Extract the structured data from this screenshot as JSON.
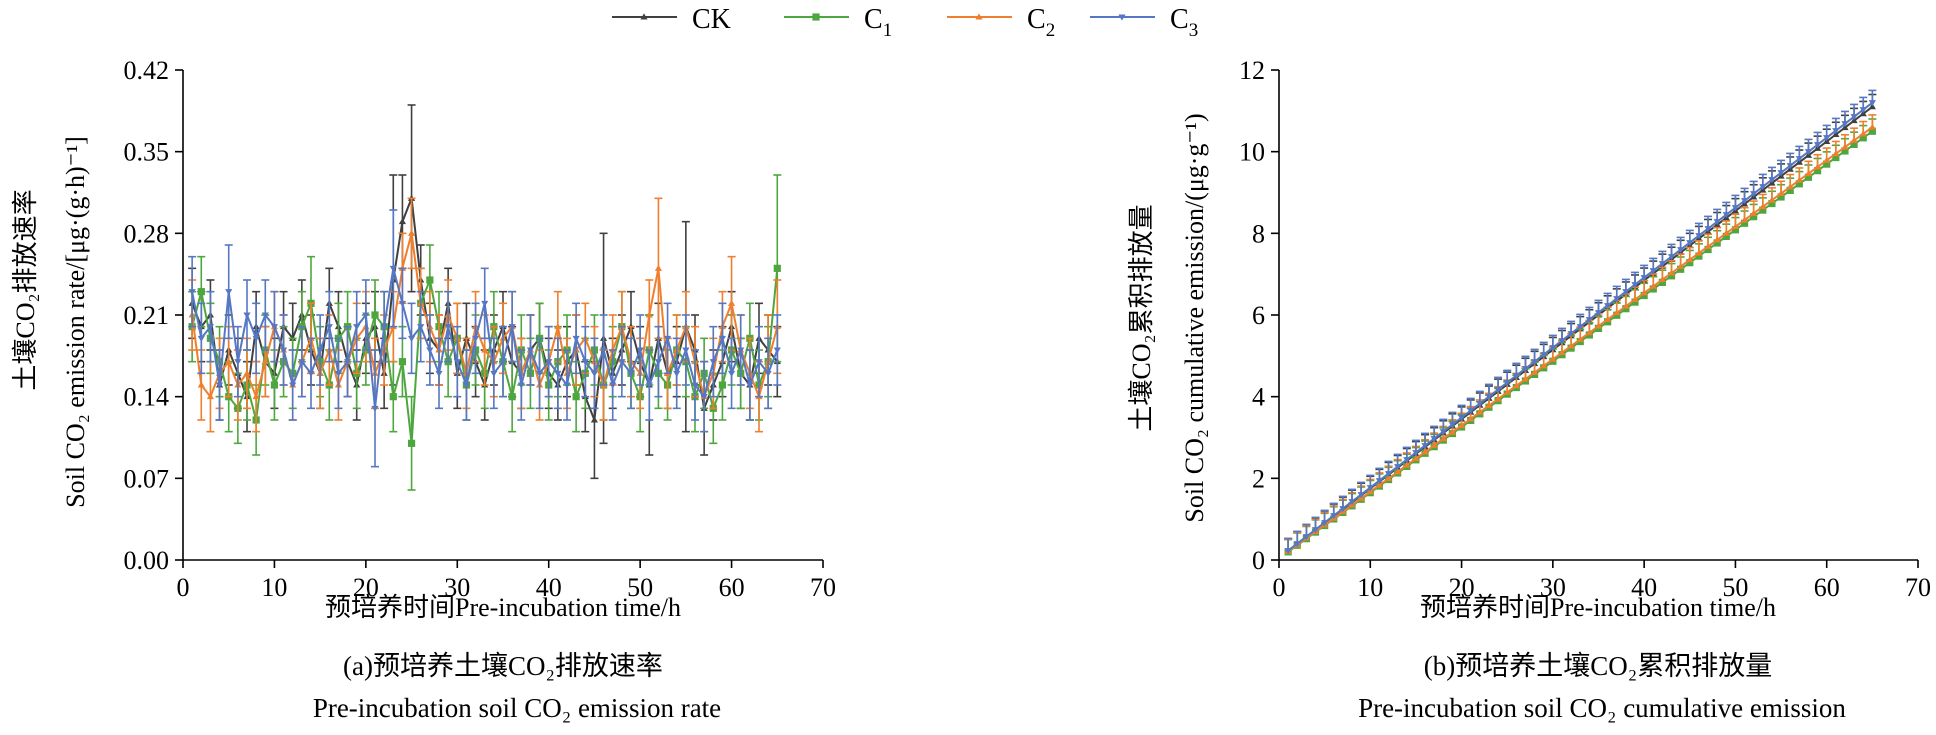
{
  "legend": {
    "items": [
      {
        "label": "CK",
        "sub": "",
        "color": "#404040",
        "marker": "triangle-up"
      },
      {
        "label": "C",
        "sub": "1",
        "color": "#4ea73e",
        "marker": "square"
      },
      {
        "label": "C",
        "sub": "2",
        "color": "#ef7f2e",
        "marker": "triangle-up"
      },
      {
        "label": "C",
        "sub": "3",
        "color": "#5577c4",
        "marker": "triangle-down"
      }
    ]
  },
  "chart_data": [
    {
      "type": "line",
      "id": "a",
      "xlabel": "预培养时间Pre-incubation time/h",
      "ylabel_cn": "土壤CO₂排放速率",
      "ylabel_en": "Soil CO₂ emission rate/[μg·(g·h)⁻¹]",
      "caption_cn": "(a)预培养土壤CO₂排放速率",
      "caption_en": "Pre-incubation soil CO₂ emission rate",
      "xlim": [
        0,
        70
      ],
      "ylim": [
        0,
        0.42
      ],
      "xticks": [
        "0",
        "10",
        "20",
        "30",
        "40",
        "50",
        "60",
        "70"
      ],
      "yticks": [
        "0.00",
        "0.07",
        "0.14",
        "0.21",
        "0.28",
        "0.35",
        "0.42"
      ],
      "x": [
        1,
        2,
        3,
        4,
        5,
        6,
        7,
        8,
        9,
        10,
        11,
        12,
        13,
        14,
        15,
        16,
        17,
        18,
        19,
        20,
        21,
        22,
        23,
        24,
        25,
        26,
        27,
        28,
        29,
        30,
        31,
        32,
        33,
        34,
        35,
        36,
        37,
        38,
        39,
        40,
        41,
        42,
        43,
        44,
        45,
        46,
        47,
        48,
        49,
        50,
        51,
        52,
        53,
        54,
        55,
        56,
        57,
        58,
        59,
        60,
        61,
        62,
        63,
        64,
        65
      ],
      "series": [
        {
          "name": "CK",
          "color": "#404040",
          "marker": "triangle-up",
          "values": [
            0.22,
            0.2,
            0.21,
            0.15,
            0.18,
            0.16,
            0.14,
            0.2,
            0.17,
            0.16,
            0.2,
            0.19,
            0.21,
            0.18,
            0.16,
            0.22,
            0.2,
            0.17,
            0.15,
            0.19,
            0.2,
            0.16,
            0.24,
            0.29,
            0.31,
            0.24,
            0.19,
            0.18,
            0.22,
            0.16,
            0.19,
            0.17,
            0.15,
            0.18,
            0.2,
            0.17,
            0.16,
            0.18,
            0.19,
            0.16,
            0.15,
            0.17,
            0.18,
            0.14,
            0.12,
            0.19,
            0.16,
            0.18,
            0.2,
            0.17,
            0.15,
            0.19,
            0.16,
            0.17,
            0.2,
            0.18,
            0.13,
            0.15,
            0.17,
            0.2,
            0.16,
            0.15,
            0.19,
            0.18,
            0.17
          ],
          "errors": [
            0.03,
            0.03,
            0.03,
            0.03,
            0.03,
            0.03,
            0.03,
            0.03,
            0.03,
            0.03,
            0.03,
            0.03,
            0.03,
            0.03,
            0.03,
            0.03,
            0.03,
            0.03,
            0.03,
            0.03,
            0.03,
            0.03,
            0.09,
            0.04,
            0.08,
            0.03,
            0.03,
            0.03,
            0.03,
            0.03,
            0.03,
            0.03,
            0.03,
            0.03,
            0.03,
            0.03,
            0.03,
            0.03,
            0.03,
            0.03,
            0.03,
            0.03,
            0.03,
            0.03,
            0.05,
            0.09,
            0.03,
            0.03,
            0.03,
            0.03,
            0.06,
            0.03,
            0.03,
            0.03,
            0.09,
            0.03,
            0.04,
            0.03,
            0.03,
            0.03,
            0.03,
            0.03,
            0.03,
            0.03,
            0.03
          ]
        },
        {
          "name": "C1",
          "color": "#4ea73e",
          "marker": "square",
          "values": [
            0.2,
            0.23,
            0.19,
            0.17,
            0.14,
            0.13,
            0.15,
            0.12,
            0.18,
            0.15,
            0.17,
            0.16,
            0.2,
            0.22,
            0.17,
            0.15,
            0.19,
            0.2,
            0.16,
            0.18,
            0.21,
            0.2,
            0.14,
            0.17,
            0.1,
            0.22,
            0.24,
            0.2,
            0.17,
            0.19,
            0.15,
            0.18,
            0.16,
            0.2,
            0.17,
            0.14,
            0.18,
            0.16,
            0.19,
            0.15,
            0.17,
            0.18,
            0.14,
            0.16,
            0.18,
            0.15,
            0.17,
            0.2,
            0.16,
            0.14,
            0.18,
            0.16,
            0.15,
            0.18,
            0.17,
            0.14,
            0.16,
            0.13,
            0.15,
            0.18,
            0.16,
            0.19,
            0.15,
            0.17,
            0.25
          ],
          "errors": [
            0.03,
            0.03,
            0.03,
            0.03,
            0.03,
            0.03,
            0.03,
            0.03,
            0.03,
            0.03,
            0.03,
            0.03,
            0.03,
            0.04,
            0.03,
            0.03,
            0.03,
            0.03,
            0.03,
            0.03,
            0.03,
            0.03,
            0.03,
            0.03,
            0.04,
            0.03,
            0.03,
            0.03,
            0.03,
            0.03,
            0.03,
            0.03,
            0.03,
            0.03,
            0.03,
            0.03,
            0.03,
            0.03,
            0.03,
            0.03,
            0.03,
            0.03,
            0.03,
            0.03,
            0.03,
            0.03,
            0.03,
            0.03,
            0.03,
            0.03,
            0.03,
            0.03,
            0.03,
            0.03,
            0.03,
            0.03,
            0.03,
            0.03,
            0.03,
            0.03,
            0.03,
            0.03,
            0.03,
            0.03,
            0.08
          ]
        },
        {
          "name": "C2",
          "color": "#ef7f2e",
          "marker": "triangle-up",
          "values": [
            0.21,
            0.15,
            0.14,
            0.16,
            0.17,
            0.15,
            0.16,
            0.14,
            0.17,
            0.2,
            0.18,
            0.15,
            0.17,
            0.19,
            0.16,
            0.18,
            0.15,
            0.17,
            0.19,
            0.2,
            0.16,
            0.18,
            0.2,
            0.25,
            0.28,
            0.22,
            0.2,
            0.18,
            0.21,
            0.19,
            0.16,
            0.2,
            0.18,
            0.17,
            0.19,
            0.2,
            0.16,
            0.18,
            0.15,
            0.17,
            0.2,
            0.16,
            0.18,
            0.19,
            0.17,
            0.15,
            0.18,
            0.2,
            0.17,
            0.16,
            0.21,
            0.25,
            0.16,
            0.18,
            0.2,
            0.17,
            0.14,
            0.16,
            0.2,
            0.22,
            0.18,
            0.16,
            0.14,
            0.17,
            0.2
          ],
          "errors": [
            0.03,
            0.03,
            0.03,
            0.03,
            0.03,
            0.03,
            0.03,
            0.03,
            0.03,
            0.03,
            0.03,
            0.03,
            0.03,
            0.03,
            0.03,
            0.03,
            0.03,
            0.03,
            0.03,
            0.03,
            0.03,
            0.03,
            0.03,
            0.03,
            0.03,
            0.03,
            0.03,
            0.03,
            0.03,
            0.03,
            0.03,
            0.03,
            0.03,
            0.03,
            0.03,
            0.03,
            0.03,
            0.03,
            0.03,
            0.03,
            0.03,
            0.03,
            0.03,
            0.03,
            0.03,
            0.03,
            0.03,
            0.03,
            0.03,
            0.03,
            0.03,
            0.06,
            0.03,
            0.03,
            0.03,
            0.03,
            0.03,
            0.03,
            0.03,
            0.04,
            0.03,
            0.03,
            0.03,
            0.04,
            0.04
          ]
        },
        {
          "name": "C3",
          "color": "#5577c4",
          "marker": "triangle-down",
          "values": [
            0.23,
            0.19,
            0.2,
            0.15,
            0.23,
            0.17,
            0.21,
            0.19,
            0.21,
            0.2,
            0.18,
            0.15,
            0.17,
            0.16,
            0.18,
            0.2,
            0.16,
            0.17,
            0.2,
            0.21,
            0.13,
            0.2,
            0.25,
            0.22,
            0.19,
            0.2,
            0.18,
            0.16,
            0.2,
            0.17,
            0.15,
            0.19,
            0.22,
            0.16,
            0.17,
            0.2,
            0.15,
            0.18,
            0.16,
            0.17,
            0.16,
            0.15,
            0.19,
            0.17,
            0.16,
            0.18,
            0.15,
            0.17,
            0.16,
            0.18,
            0.15,
            0.17,
            0.19,
            0.16,
            0.18,
            0.15,
            0.14,
            0.17,
            0.19,
            0.16,
            0.18,
            0.15,
            0.17,
            0.16,
            0.18
          ],
          "errors": [
            0.03,
            0.03,
            0.03,
            0.03,
            0.04,
            0.03,
            0.03,
            0.03,
            0.03,
            0.03,
            0.03,
            0.03,
            0.03,
            0.03,
            0.03,
            0.03,
            0.03,
            0.03,
            0.03,
            0.03,
            0.05,
            0.03,
            0.05,
            0.03,
            0.03,
            0.03,
            0.03,
            0.03,
            0.03,
            0.03,
            0.03,
            0.03,
            0.03,
            0.03,
            0.03,
            0.03,
            0.03,
            0.03,
            0.03,
            0.03,
            0.03,
            0.03,
            0.03,
            0.03,
            0.03,
            0.03,
            0.03,
            0.03,
            0.03,
            0.03,
            0.03,
            0.03,
            0.03,
            0.03,
            0.03,
            0.03,
            0.03,
            0.03,
            0.03,
            0.03,
            0.03,
            0.03,
            0.03,
            0.03,
            0.03
          ]
        }
      ]
    },
    {
      "type": "line",
      "id": "b",
      "xlabel": "预培养时间Pre-incubation time/h",
      "ylabel_cn": "土壤CO₂累积排放量",
      "ylabel_en": "Soil CO₂ cumulative emission/(μg·g⁻¹)",
      "caption_cn": "(b)预培养土壤CO₂累积排放量",
      "caption_en": "Pre-incubation soil CO₂ cumulative emission",
      "xlim": [
        0,
        70
      ],
      "ylim": [
        0,
        12
      ],
      "xticks": [
        "0",
        "10",
        "20",
        "30",
        "40",
        "50",
        "60",
        "70"
      ],
      "yticks": [
        "0",
        "2",
        "4",
        "6",
        "8",
        "10",
        "12"
      ],
      "x_start": 1,
      "x_end": 65,
      "points": 65,
      "series": [
        {
          "name": "CK",
          "color": "#404040",
          "marker": "triangle-up",
          "start": 0.22,
          "end": 11.1,
          "error": 0.3
        },
        {
          "name": "C1",
          "color": "#4ea73e",
          "marker": "square",
          "start": 0.2,
          "end": 10.5,
          "error": 0.3
        },
        {
          "name": "C2",
          "color": "#ef7f2e",
          "marker": "triangle-up",
          "start": 0.21,
          "end": 10.6,
          "error": 0.3
        },
        {
          "name": "C3",
          "color": "#5577c4",
          "marker": "triangle-down",
          "start": 0.23,
          "end": 11.2,
          "error": 0.3
        }
      ]
    }
  ]
}
